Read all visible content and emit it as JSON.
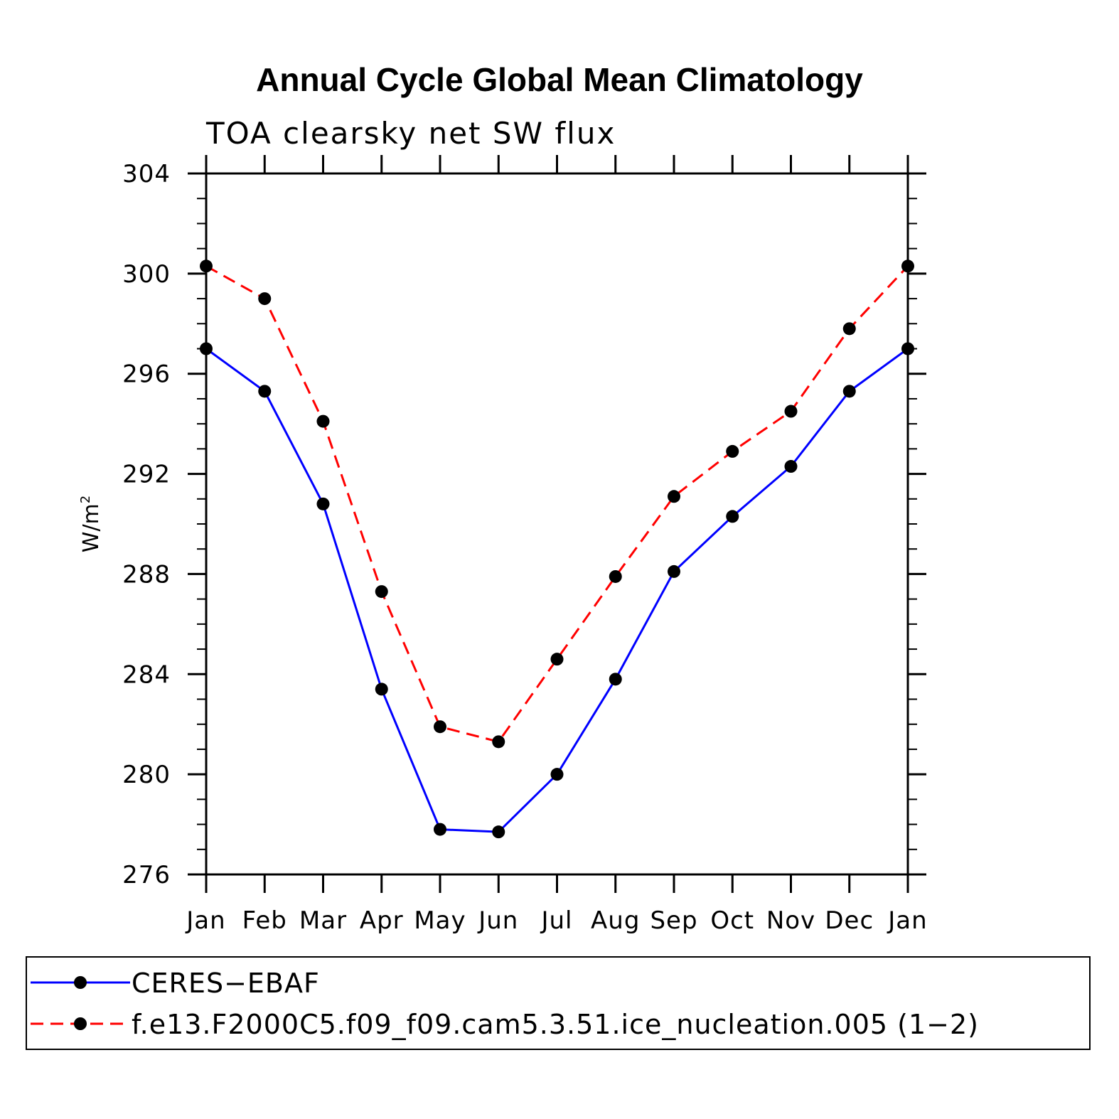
{
  "chart_data": {
    "type": "line",
    "title": "Annual Cycle Global Mean Climatology",
    "subtitle": "TOA clearsky net SW flux",
    "xlabel": "",
    "ylabel_base": "W/m",
    "ylabel_sup": "2",
    "categories": [
      "Jan",
      "Feb",
      "Mar",
      "Apr",
      "May",
      "Jun",
      "Jul",
      "Aug",
      "Sep",
      "Oct",
      "Nov",
      "Dec",
      "Jan"
    ],
    "ylim": [
      276,
      304
    ],
    "yticks": [
      276,
      280,
      284,
      288,
      292,
      296,
      300,
      304
    ],
    "grid": false,
    "legend_position": "bottom",
    "series": [
      {
        "name": "CERES−EBAF",
        "color": "#0000ff",
        "dash": "solid",
        "marker": "circle",
        "values": [
          297.0,
          295.3,
          290.8,
          283.4,
          277.8,
          277.7,
          280.0,
          283.8,
          288.1,
          290.3,
          292.3,
          295.3,
          297.0
        ]
      },
      {
        "name": "f.e13.F2000C5.f09_f09.cam5.3.51.ice_nucleation.005 (1−2)",
        "color": "#ff0000",
        "dash": "dashed",
        "marker": "circle",
        "values": [
          300.3,
          299.0,
          294.1,
          287.3,
          281.9,
          281.3,
          284.6,
          287.9,
          291.1,
          292.9,
          294.5,
          297.8,
          300.3
        ]
      }
    ]
  }
}
